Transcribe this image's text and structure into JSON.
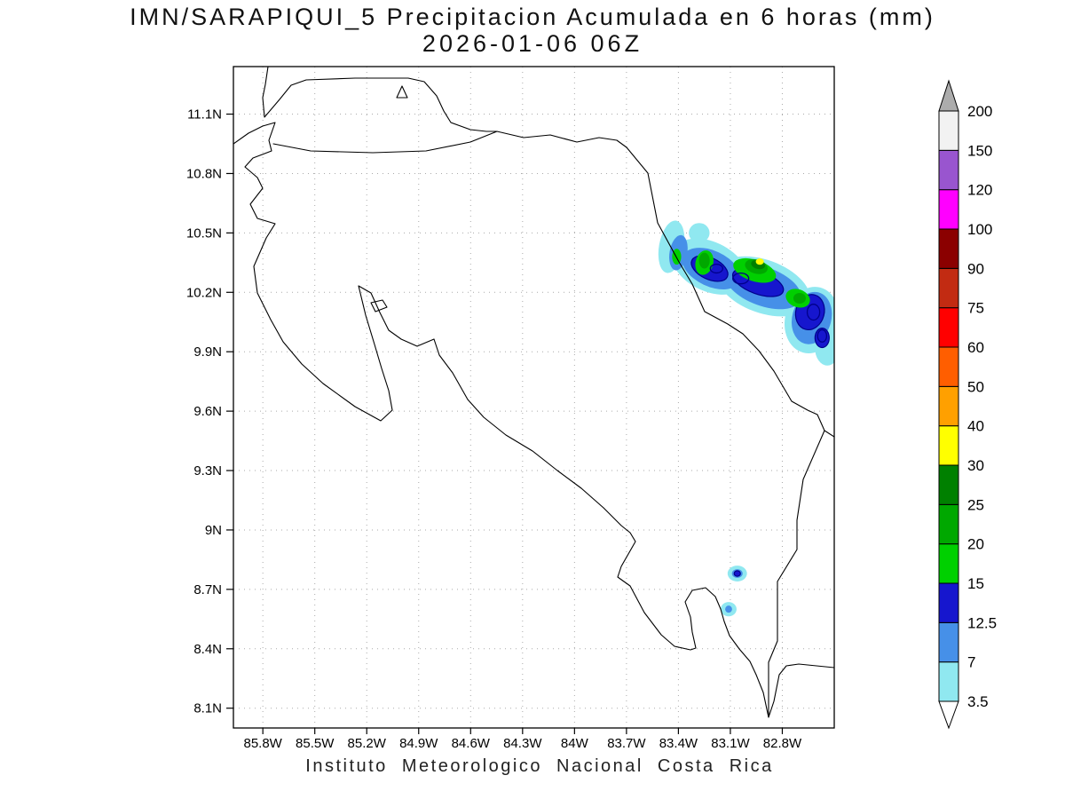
{
  "header": {
    "title_line1": "IMN/SARAPIQUI_5 Precipitacion Acumulada en 6 horas (mm)",
    "title_line2": "2026-01-06 06Z"
  },
  "footer": {
    "caption": "Instituto Meteorologico Nacional Costa Rica"
  },
  "chart_data": {
    "type": "heatmap",
    "title": "IMN/SARAPIQUI_5 Precipitacion Acumulada en 6 horas (mm)",
    "valid_time": "2026-01-06 06Z",
    "units": "mm",
    "region": "Costa Rica",
    "map_extent": {
      "west": 85.97,
      "east": 82.5,
      "north": 11.34,
      "south": 8.0
    },
    "x_axis": {
      "values": [
        85.8,
        85.5,
        85.2,
        84.9,
        84.6,
        84.3,
        84.0,
        83.7,
        83.4,
        83.1,
        82.8
      ],
      "labels": [
        "85.8W",
        "85.5W",
        "85.2W",
        "84.9W",
        "84.6W",
        "84.3W",
        "84W",
        "83.7W",
        "83.4W",
        "83.1W",
        "82.8W"
      ]
    },
    "y_axis": {
      "values": [
        11.1,
        10.8,
        10.5,
        10.2,
        9.9,
        9.6,
        9.3,
        9.0,
        8.7,
        8.4,
        8.1
      ],
      "labels": [
        "11.1N",
        "10.8N",
        "10.5N",
        "10.2N",
        "9.9N",
        "9.6N",
        "9.3N",
        "9N",
        "8.7N",
        "8.4N",
        "8.1N"
      ]
    },
    "colorbar": {
      "levels": [
        3.5,
        7,
        12.5,
        15,
        20,
        25,
        30,
        40,
        50,
        60,
        75,
        90,
        100,
        120,
        150,
        200
      ],
      "band_colors": [
        "#90E8F0",
        "#4690E8",
        "#1616CE",
        "#00D000",
        "#00A800",
        "#008000",
        "#FFFF00",
        "#FFA000",
        "#FF5E00",
        "#FF0000",
        "#C22B12",
        "#8B0000",
        "#FF00FF",
        "#9955CF",
        "#F2F2F2"
      ],
      "over_color": "#ACACAC",
      "under_color": "#FFFFFF",
      "contour_line_color": "#00008B"
    },
    "precip_features": [
      {
        "level": 3.5,
        "lon": 83.44,
        "lat": 10.43,
        "rx": 0.072,
        "ry": 0.134,
        "rot": 10
      },
      {
        "level": 3.5,
        "lon": 83.28,
        "lat": 10.5,
        "rx": 0.06,
        "ry": 0.05,
        "rot": 0
      },
      {
        "level": 3.5,
        "lon": 83.22,
        "lat": 10.33,
        "rx": 0.23,
        "ry": 0.125,
        "rot": 25
      },
      {
        "level": 3.5,
        "lon": 82.91,
        "lat": 10.23,
        "rx": 0.282,
        "ry": 0.134,
        "rot": 20
      },
      {
        "level": 3.5,
        "lon": 82.63,
        "lat": 10.06,
        "rx": 0.154,
        "ry": 0.17,
        "rot": 15
      },
      {
        "level": 3.5,
        "lon": 82.54,
        "lat": 9.92,
        "rx": 0.072,
        "ry": 0.09,
        "rot": 0
      },
      {
        "level": 3.5,
        "lon": 83.06,
        "lat": 8.78,
        "rx": 0.056,
        "ry": 0.04,
        "rot": 0
      },
      {
        "level": 3.5,
        "lon": 83.11,
        "lat": 8.6,
        "rx": 0.046,
        "ry": 0.036,
        "rot": 0
      },
      {
        "level": 7,
        "lon": 83.4,
        "lat": 10.4,
        "rx": 0.051,
        "ry": 0.09,
        "rot": 10
      },
      {
        "level": 7,
        "lon": 83.21,
        "lat": 10.32,
        "rx": 0.179,
        "ry": 0.09,
        "rot": 25
      },
      {
        "level": 7,
        "lon": 82.91,
        "lat": 10.23,
        "rx": 0.23,
        "ry": 0.098,
        "rot": 20
      },
      {
        "level": 7,
        "lon": 82.63,
        "lat": 10.07,
        "rx": 0.113,
        "ry": 0.134,
        "rot": 15
      },
      {
        "level": 7,
        "lon": 83.06,
        "lat": 8.78,
        "rx": 0.031,
        "ry": 0.022,
        "rot": 0
      },
      {
        "level": 7,
        "lon": 83.11,
        "lat": 8.6,
        "rx": 0.02,
        "ry": 0.018,
        "rot": 0
      },
      {
        "level": 12.5,
        "lon": 83.22,
        "lat": 10.32,
        "rx": 0.113,
        "ry": 0.054,
        "rot": 25
      },
      {
        "level": 12.5,
        "lon": 82.94,
        "lat": 10.25,
        "rx": 0.154,
        "ry": 0.058,
        "rot": 20
      },
      {
        "level": 12.5,
        "lon": 82.64,
        "lat": 10.1,
        "rx": 0.082,
        "ry": 0.09,
        "rot": 15
      },
      {
        "level": 12.5,
        "lon": 82.57,
        "lat": 9.97,
        "rx": 0.041,
        "ry": 0.049,
        "rot": 0
      },
      {
        "level": 12.5,
        "lon": 83.06,
        "lat": 8.78,
        "rx": 0.018,
        "ry": 0.014,
        "rot": 0
      },
      {
        "level": 15,
        "lon": 83.41,
        "lat": 10.38,
        "rx": 0.026,
        "ry": 0.04,
        "rot": 0
      },
      {
        "level": 15,
        "lon": 83.25,
        "lat": 10.35,
        "rx": 0.051,
        "ry": 0.063,
        "rot": 15
      },
      {
        "level": 15,
        "lon": 82.96,
        "lat": 10.31,
        "rx": 0.128,
        "ry": 0.054,
        "rot": 18
      },
      {
        "level": 15,
        "lon": 82.71,
        "lat": 10.17,
        "rx": 0.072,
        "ry": 0.045,
        "rot": 20
      },
      {
        "level": 20,
        "lon": 83.25,
        "lat": 10.36,
        "rx": 0.031,
        "ry": 0.04,
        "rot": 0
      },
      {
        "level": 20,
        "lon": 82.95,
        "lat": 10.33,
        "rx": 0.067,
        "ry": 0.036,
        "rot": 15
      },
      {
        "level": 20,
        "lon": 82.7,
        "lat": 10.17,
        "rx": 0.036,
        "ry": 0.027,
        "rot": 0
      },
      {
        "level": 25,
        "lon": 82.94,
        "lat": 10.34,
        "rx": 0.041,
        "ry": 0.022,
        "rot": 15
      },
      {
        "level": 30,
        "lon": 82.93,
        "lat": 10.355,
        "rx": 0.023,
        "ry": 0.016,
        "rot": 0
      }
    ],
    "contour_rings": [
      {
        "lon": 83.18,
        "lat": 10.32,
        "rx": 0.036,
        "ry": 0.022
      },
      {
        "lon": 83.04,
        "lat": 10.27,
        "rx": 0.046,
        "ry": 0.027
      },
      {
        "lon": 82.62,
        "lat": 10.1,
        "rx": 0.036,
        "ry": 0.04
      },
      {
        "lon": 82.57,
        "lat": 9.98,
        "rx": 0.026,
        "ry": 0.031
      }
    ]
  }
}
